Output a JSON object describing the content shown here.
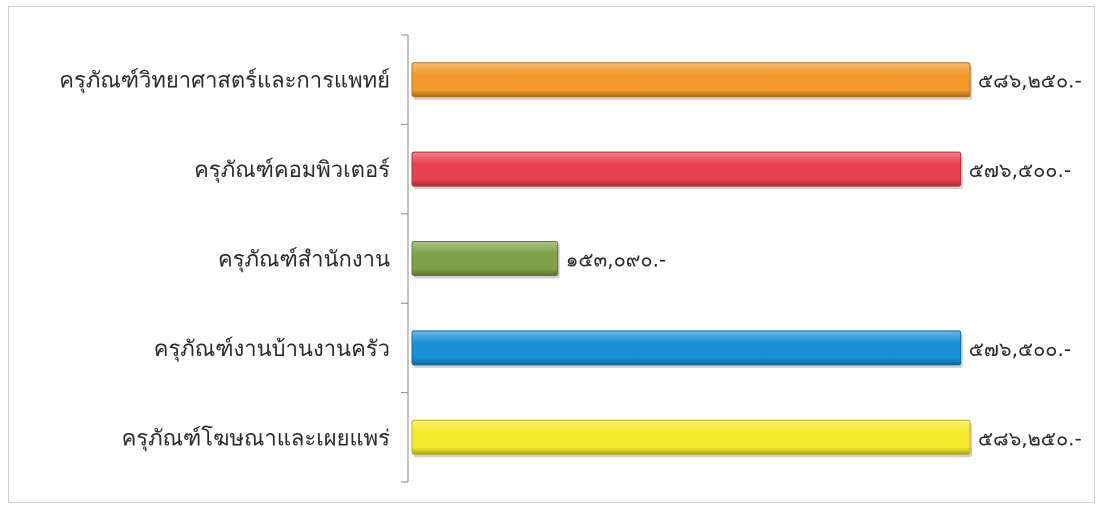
{
  "chart_data": {
    "type": "bar",
    "orientation": "horizontal",
    "title": "",
    "xlabel": "",
    "ylabel": "",
    "xlim": [
      0,
      586250
    ],
    "grid": false,
    "categories": [
      "ครุภัณฑ์วิทยาศาสตร์และการแพทย์",
      "ครุภัณฑ์คอมพิวเตอร์",
      "ครุภัณฑ์สำนักงาน",
      "ครุภัณฑ์งานบ้านงานครัว",
      "ครุภัณฑ์โฆษณาและเผยแพร่"
    ],
    "values": [
      586250,
      576500,
      153090,
      576500,
      586250
    ],
    "value_labels": [
      "๕๘๖,๒๕๐.-",
      "๕๗๖,๕๐๐.-",
      "๑๕๓,๐๙๐.-",
      "๕๗๖,๕๐๐.-",
      "๕๘๖,๒๕๐.-"
    ],
    "colors": [
      "#f39a2a",
      "#e8404e",
      "#7fa14a",
      "#1a8fd8",
      "#f5ea2a"
    ]
  }
}
